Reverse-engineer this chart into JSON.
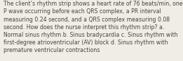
{
  "text": "The client’s rhythm strip shows a heart rate of 76 beats/min, one\nP wave occurring before each QRS complex, a PR interval\nmeasuring 0.24 second, and a QRS complex measuring 0.08\nsecond. How does the nurse interpret this rhythm strip? a.\nNormal sinus rhythm b. Sinus bradycardia c. Sinus rhythm with\nfirst-degree atrioventricular (AV) block d. Sinus rhythm with\npremature ventricular contractions",
  "background_color": "#f0ede6",
  "text_color": "#4a443e",
  "font_size": 5.6,
  "fig_width": 2.61,
  "fig_height": 0.88,
  "dpi": 100
}
